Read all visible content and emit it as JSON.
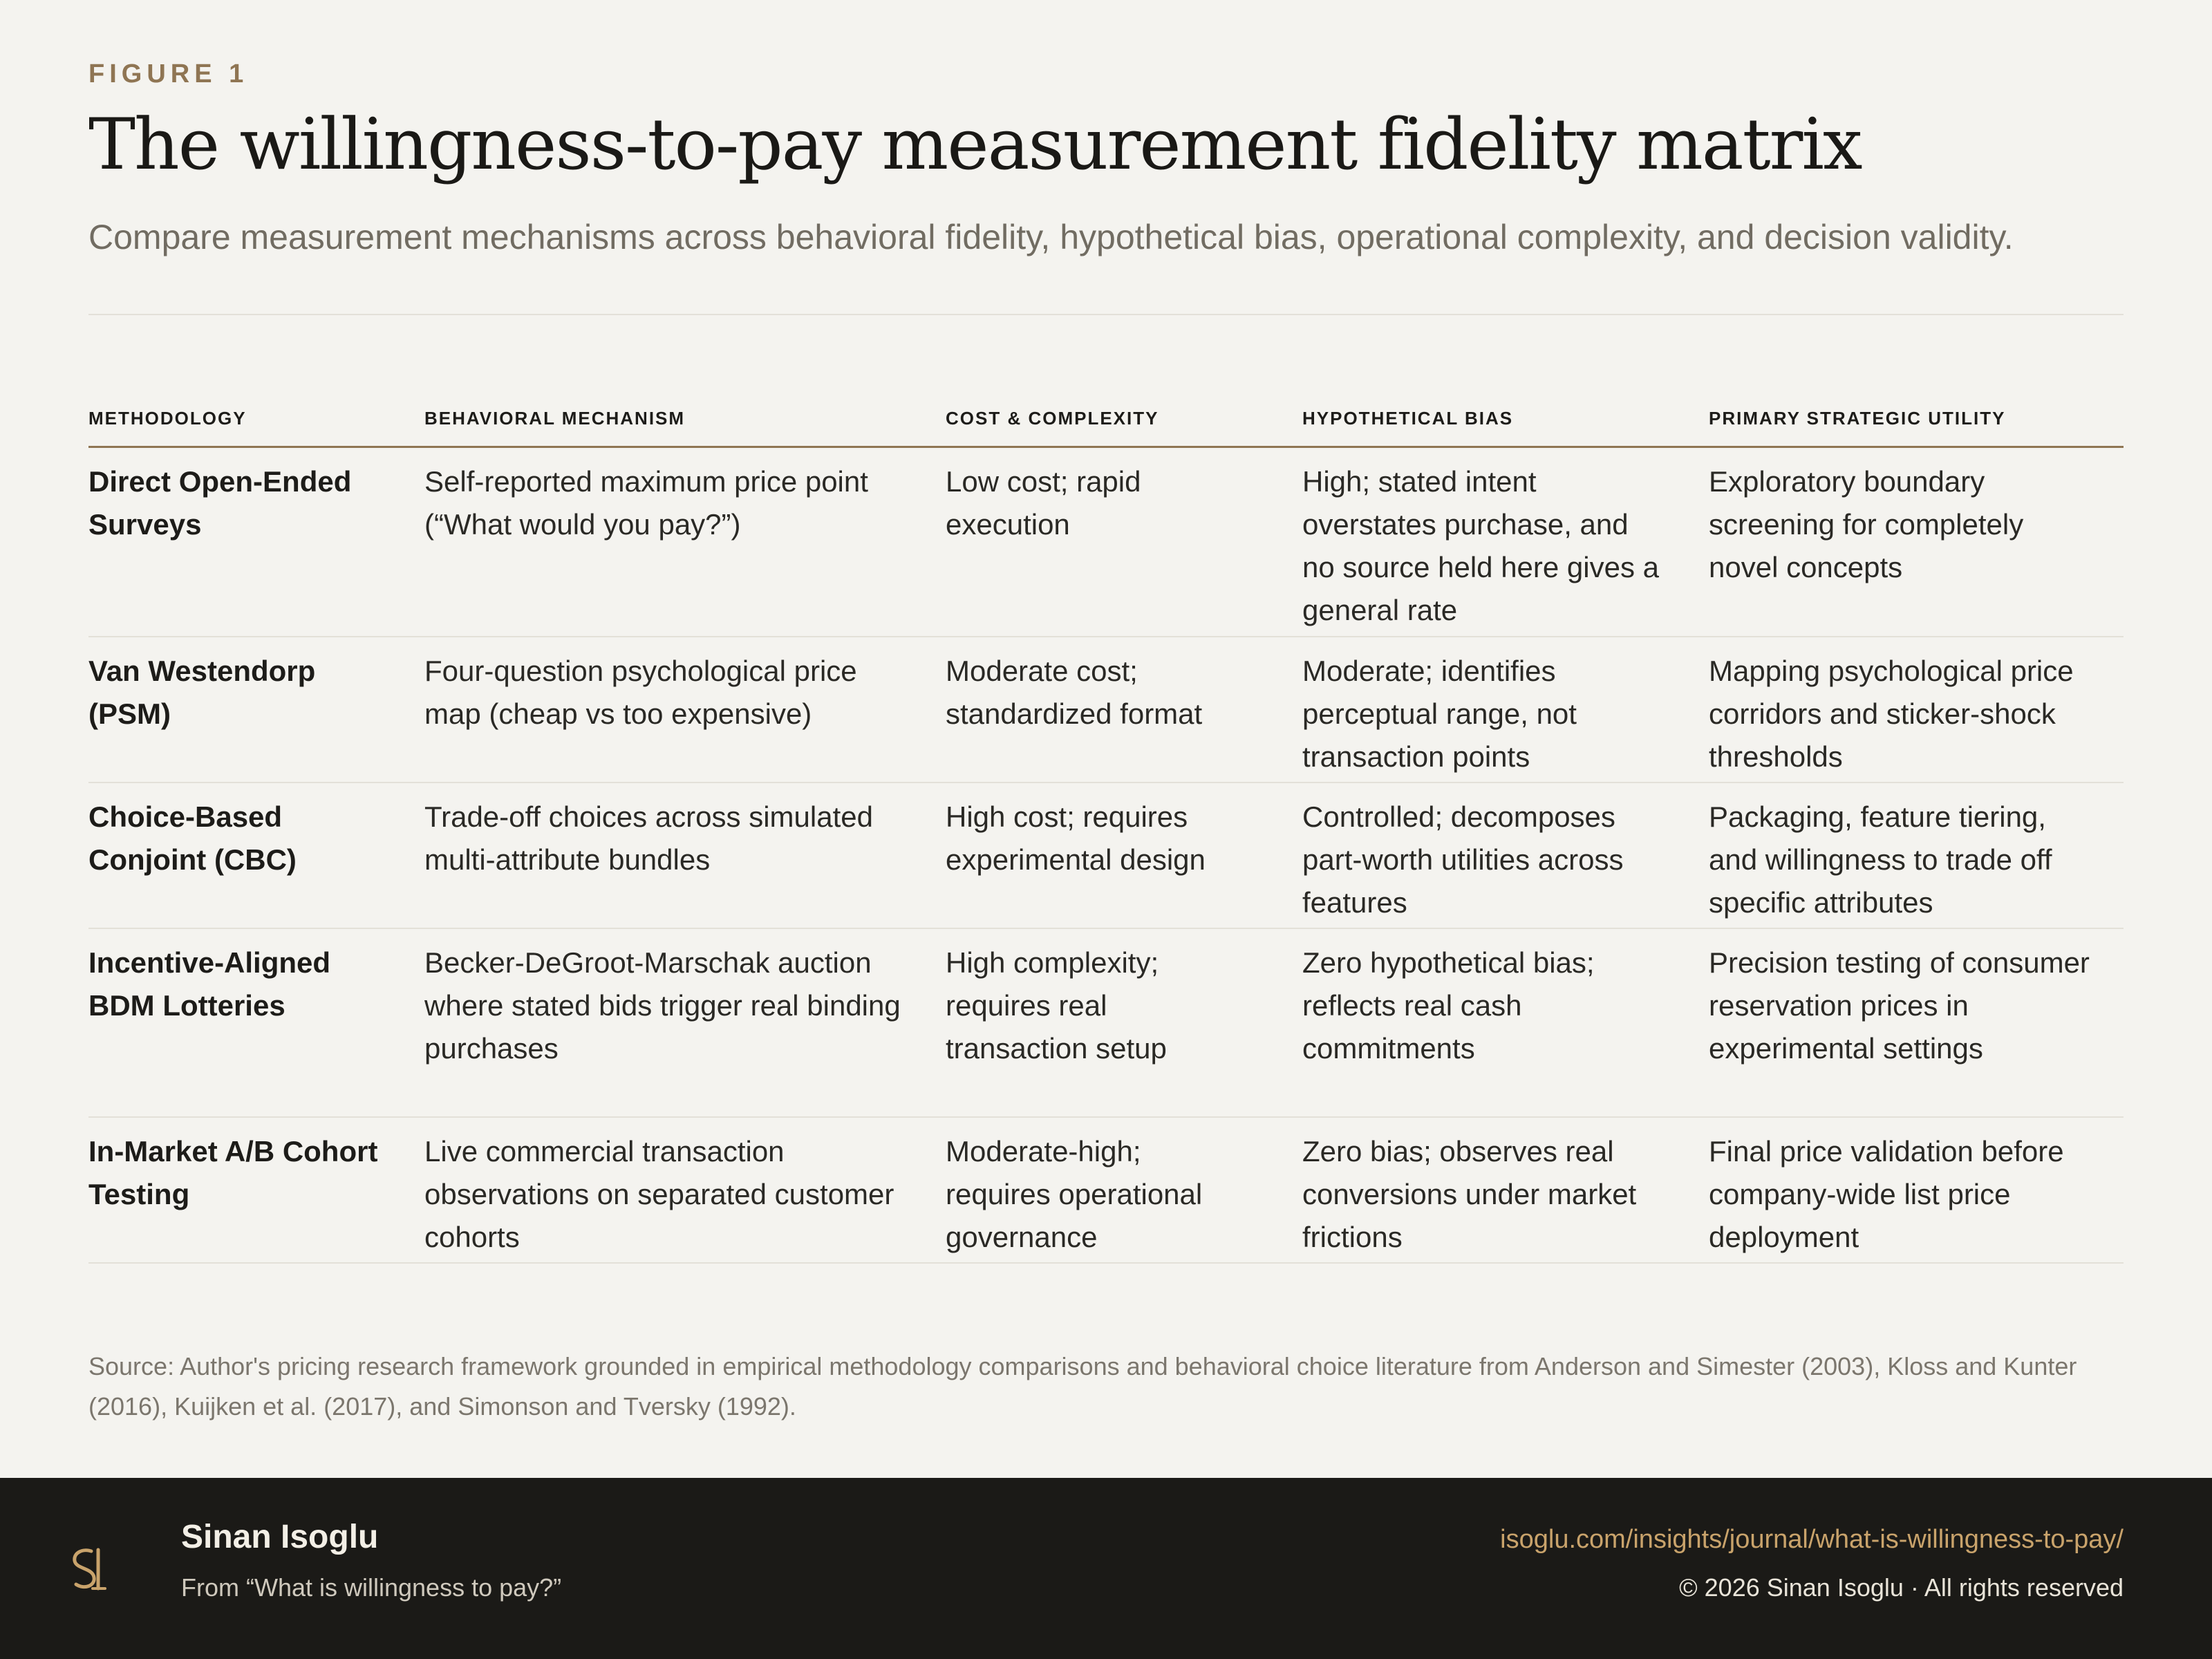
{
  "figure": {
    "eyebrow": "FIGURE 1",
    "title": "The willingness-to-pay measurement fidelity matrix",
    "subtitle": "Compare measurement mechanisms across behavioral fidelity, hypothetical bias, operational complexity, and decision validity."
  },
  "table": {
    "headers": [
      "METHODOLOGY",
      "BEHAVIORAL MECHANISM",
      "COST & COMPLEXITY",
      "HYPOTHETICAL BIAS",
      "PRIMARY STRATEGIC UTILITY"
    ],
    "rows": [
      {
        "methodology": "Direct Open-Ended Surveys",
        "mechanism": "Self-reported maximum price point (“What would you pay?”)",
        "cost": "Low cost; rapid execution",
        "bias": "High; stated intent overstates purchase, and no source held here gives a general rate",
        "utility": "Exploratory boundary screening for completely novel concepts"
      },
      {
        "methodology": "Van Westendorp (PSM)",
        "mechanism": "Four-question psychological price map (cheap vs too expensive)",
        "cost": "Moderate cost; standardized format",
        "bias": "Moderate; identifies perceptual range, not transaction points",
        "utility": "Mapping psychological price corridors and sticker-shock thresholds"
      },
      {
        "methodology": "Choice-Based Conjoint (CBC)",
        "mechanism": "Trade-off choices across simulated multi-attribute bundles",
        "cost": "High cost; requires experimental design",
        "bias": "Controlled; decomposes part-worth utilities across features",
        "utility": "Packaging, feature tiering, and willingness to trade off specific attributes"
      },
      {
        "methodology": "Incentive-Aligned BDM Lotteries",
        "mechanism": "Becker-DeGroot-Marschak auction where stated bids trigger real binding purchases",
        "cost": "High complexity; requires real transaction setup",
        "bias": "Zero hypothetical bias; reflects real cash commitments",
        "utility": "Precision testing of consumer reservation prices in experimental settings"
      },
      {
        "methodology": "In-Market A/B Cohort Testing",
        "mechanism": "Live commercial transaction observations on separated customer cohorts",
        "cost": "Moderate-high; requires operational governance",
        "bias": "Zero bias; observes real conversions under market frictions",
        "utility": "Final price validation before company-wide list price deployment"
      }
    ]
  },
  "source": "Source: Author's pricing research framework grounded in empirical methodology comparisons and behavioral choice literature from Anderson and Simester (2003), Kloss and Kunter (2016), Kuijken et al. (2017), and Simonson and Tversky (1992).",
  "footer": {
    "logo_icon": "si-monogram-icon",
    "author": "Sinan Isoglu",
    "from": "From “What is willingness to pay?”",
    "url": "isoglu.com/insights/journal/what-is-willingness-to-pay/",
    "copyright": "© 2026 Sinan Isoglu · All rights reserved",
    "accent_color": "#c9a36b"
  }
}
